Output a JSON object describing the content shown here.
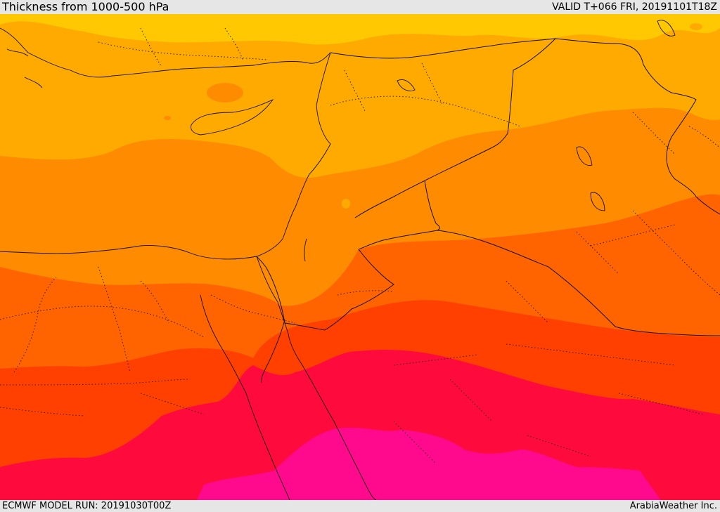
{
  "header": {
    "title": "Thickness from 1000-500 hPa",
    "valid": "VALID T+066 FRI, 20191101T18Z"
  },
  "footer": {
    "model_run": "ECMWF MODEL RUN: 20191030T00Z",
    "credit": "ArabiaWeather Inc."
  },
  "map": {
    "parameter": "1000-500 hPa thickness",
    "colors": [
      "#ffc800",
      "#ffaa00",
      "#ff8c00",
      "#ff6400",
      "#ff4000",
      "#ff0a3c",
      "#ff0a8c"
    ]
  }
}
